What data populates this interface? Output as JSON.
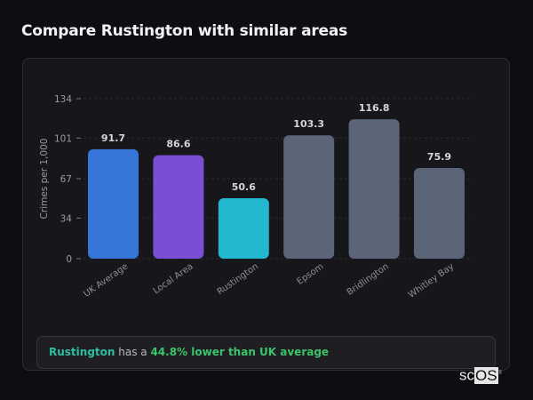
{
  "header": {
    "title": "Compare Rustington with similar areas"
  },
  "chart_data": {
    "type": "bar",
    "title": "",
    "xlabel": "",
    "ylabel": "Crimes per 1,000",
    "ylim": [
      0,
      134
    ],
    "yticks": [
      0,
      34,
      67,
      101,
      134
    ],
    "grid": true,
    "categories": [
      "UK Average",
      "Local Area",
      "Rustington",
      "Epsom",
      "Bridlington",
      "Whitley Bay"
    ],
    "values": [
      91.7,
      86.6,
      50.6,
      103.3,
      116.8,
      75.9
    ],
    "value_labels": [
      "91.7",
      "86.6",
      "50.6",
      "103.3",
      "116.8",
      "75.9"
    ],
    "colors": [
      "#3576d8",
      "#7b4fd4",
      "#22b8cf",
      "#5a6577",
      "#5a6577",
      "#5a6577"
    ]
  },
  "callout": {
    "area": "Rustington",
    "middle": " has a ",
    "diff": "44.8% lower than UK average"
  },
  "logo": {
    "text_plain": "sc",
    "text_box": "OS",
    "mark": "®"
  }
}
